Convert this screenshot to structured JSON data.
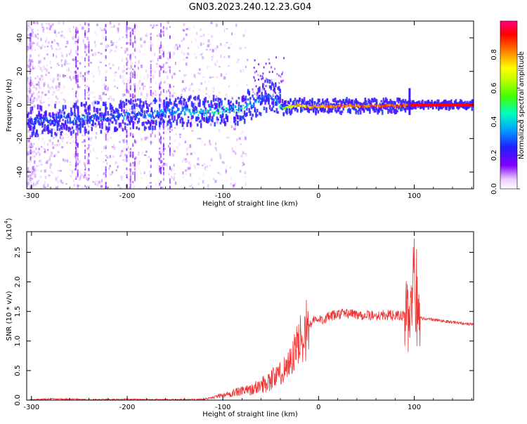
{
  "figure": {
    "title": "GN03.2023.240.12.23.G04"
  },
  "colors": {
    "snr_line": "#ee3333",
    "axis": "#000000"
  },
  "chart_data": [
    {
      "type": "heatmap",
      "xlabel": "Height of straight line (km)",
      "ylabel": "Frequency (Hz)",
      "xlim": [
        -305,
        162
      ],
      "ylim": [
        -50,
        50
      ],
      "x_ticks": [
        -300,
        -200,
        -100,
        0,
        100
      ],
      "y_ticks": [
        -40,
        -20,
        0,
        20,
        40
      ],
      "colorbar": {
        "label": "Normalized spectral amplitude",
        "range": [
          0,
          1
        ],
        "ticks": [
          0.0,
          0.2,
          0.4,
          0.6,
          0.8
        ]
      },
      "ridge": {
        "description_points_x_km": [
          -305,
          -250,
          -200,
          -150,
          -120,
          -100,
          -80,
          -65,
          -55,
          -45,
          -38,
          -30,
          -20,
          -10,
          0,
          50,
          90,
          95,
          100,
          162
        ],
        "frequency_hz": [
          -10,
          -8,
          -6,
          -4,
          -4,
          -3,
          -2,
          2,
          6,
          4,
          -2,
          -1,
          0,
          -1,
          -1,
          -0.5,
          -0.5,
          0,
          0,
          0
        ],
        "amplitude": [
          0.25,
          0.3,
          0.3,
          0.35,
          0.4,
          0.45,
          0.45,
          0.35,
          0.3,
          0.3,
          0.5,
          0.7,
          0.75,
          0.8,
          0.8,
          0.85,
          0.85,
          0.9,
          0.95,
          0.95
        ]
      }
    },
    {
      "type": "line",
      "xlabel": "Height of straight line (km)",
      "ylabel": "SNR (10 * v/v)",
      "y_multiplier": "(x10",
      "y_multiplier_exp": "4",
      "y_multiplier_close": ")",
      "xlim": [
        -305,
        162
      ],
      "ylim": [
        0,
        28500
      ],
      "x_ticks": [
        -300,
        -200,
        -100,
        0,
        100
      ],
      "y_ticks": [
        "0.0",
        "0.5",
        "1.0",
        "1.5",
        "2.0",
        "2.5"
      ],
      "series": [
        {
          "x": [
            -305,
            -280,
            -260,
            -240,
            -220,
            -200,
            -180,
            -160,
            -140,
            -120,
            -100,
            -90,
            -80,
            -70,
            -60,
            -50,
            -40,
            -35,
            -30,
            -25,
            -20,
            -15,
            -10,
            -5,
            0,
            10,
            20,
            30,
            40,
            50,
            60,
            70,
            80,
            90,
            95,
            98,
            100,
            102,
            104,
            110,
            120,
            130,
            140,
            150,
            162
          ],
          "y": [
            0,
            200,
            150,
            100,
            100,
            150,
            100,
            80,
            80,
            150,
            800,
            1200,
            1500,
            1800,
            2500,
            3500,
            4500,
            5500,
            6500,
            8000,
            10000,
            11500,
            12500,
            13500,
            13500,
            14000,
            14500,
            14700,
            14500,
            14300,
            14300,
            14400,
            14300,
            14200,
            14000,
            15000,
            26000,
            18000,
            14000,
            13800,
            13600,
            13400,
            13200,
            13000,
            12800
          ]
        }
      ]
    }
  ]
}
